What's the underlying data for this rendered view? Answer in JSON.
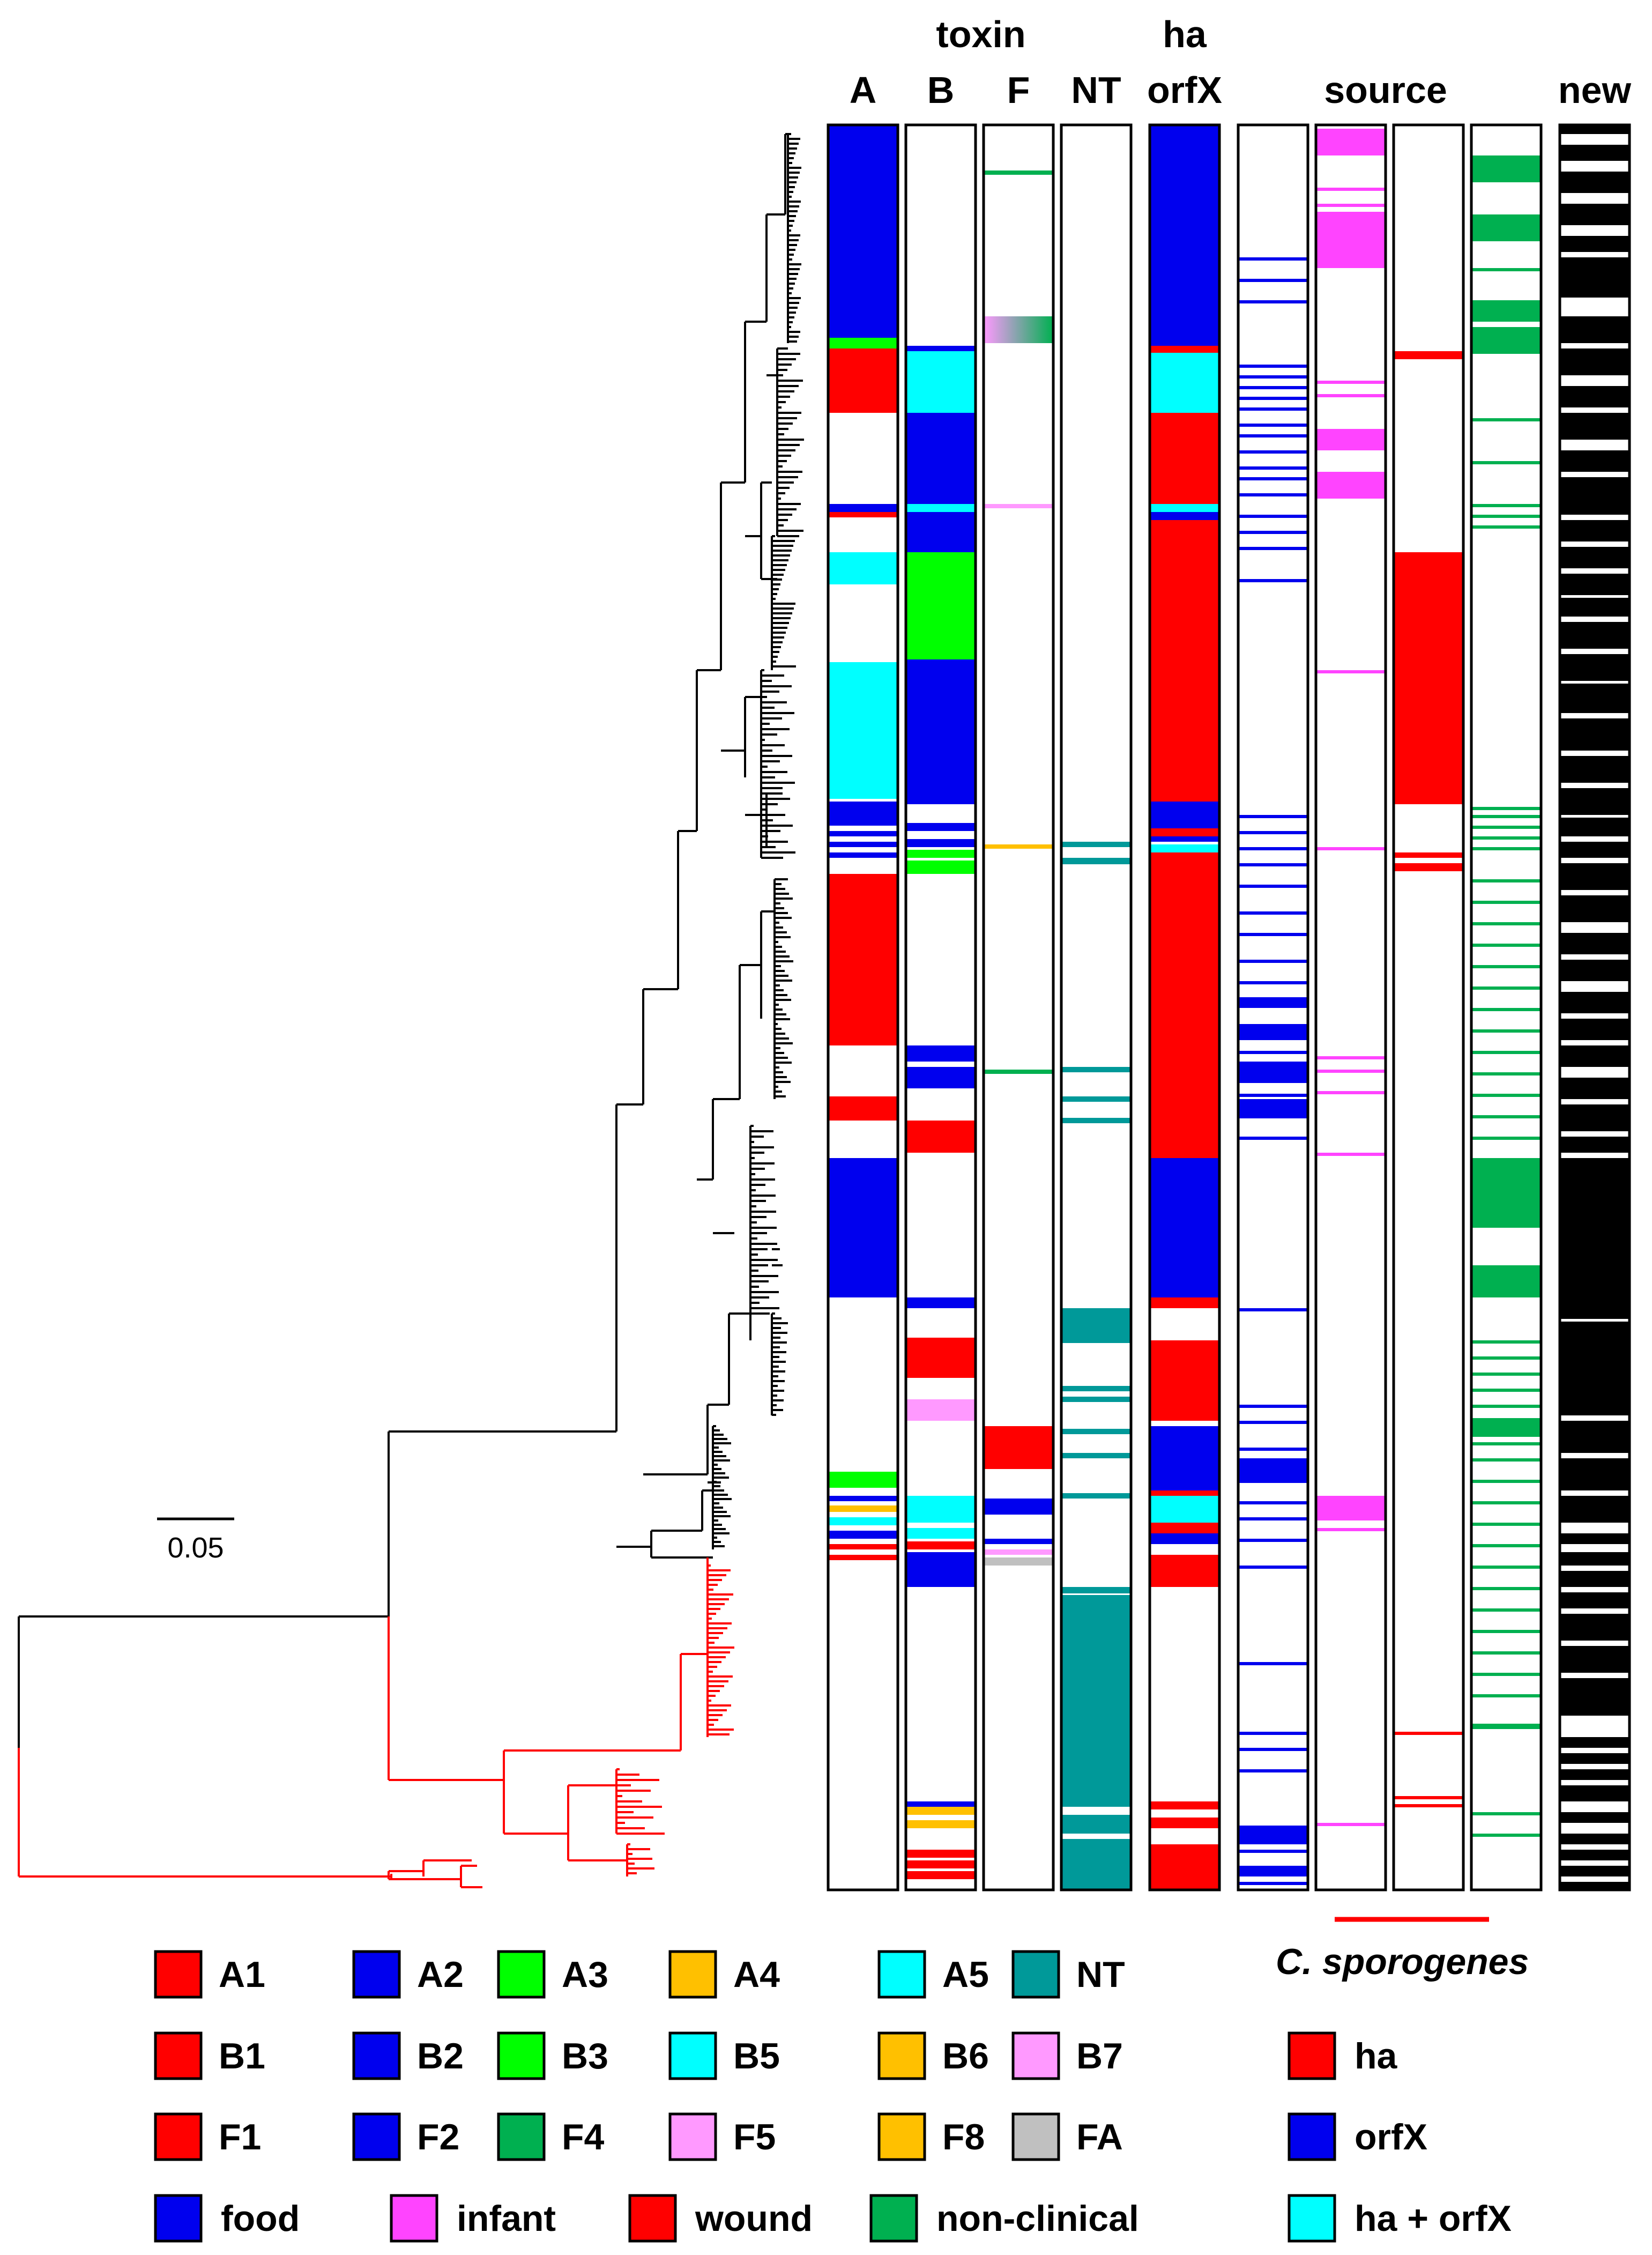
{
  "headers": {
    "toxin": "toxin",
    "A": "A",
    "B": "B",
    "F": "F",
    "NT": "NT",
    "ha": "ha",
    "orfX": "orfX",
    "source": "source",
    "new": "new"
  },
  "scale_bar": {
    "value": "0.05"
  },
  "colors": {
    "red": "#ff0000",
    "blue": "#0000ee",
    "green": "#00ff00",
    "orange": "#ffc000",
    "cyan": "#00ffff",
    "teal": "#009999",
    "pink": "#ff99ff",
    "darkgreen": "#00b050",
    "grey": "#c0c0c0",
    "magenta": "#ff44ff",
    "black": "#000000"
  },
  "legend": {
    "toxin_subtypes": [
      {
        "label": "A1",
        "color": "#ff0000"
      },
      {
        "label": "A2",
        "color": "#0000ee"
      },
      {
        "label": "A3",
        "color": "#00ff00"
      },
      {
        "label": "A4",
        "color": "#ffc000"
      },
      {
        "label": "A5",
        "color": "#00ffff"
      },
      {
        "label": "NT",
        "color": "#009999"
      },
      {
        "label": "B1",
        "color": "#ff0000"
      },
      {
        "label": "B2",
        "color": "#0000ee"
      },
      {
        "label": "B3",
        "color": "#00ff00"
      },
      {
        "label": "B5",
        "color": "#00ffff"
      },
      {
        "label": "B6",
        "color": "#ffc000"
      },
      {
        "label": "B7",
        "color": "#ff99ff"
      },
      {
        "label": "F1",
        "color": "#ff0000"
      },
      {
        "label": "F2",
        "color": "#0000ee"
      },
      {
        "label": "F4",
        "color": "#00b050"
      },
      {
        "label": "F5",
        "color": "#ff99ff"
      },
      {
        "label": "F8",
        "color": "#ffc000"
      },
      {
        "label": "FA",
        "color": "#c0c0c0"
      }
    ],
    "sources": [
      {
        "label": "food",
        "color": "#0000ee"
      },
      {
        "label": "infant",
        "color": "#ff44ff"
      },
      {
        "label": "wound",
        "color": "#ff0000"
      },
      {
        "label": "non-clinical",
        "color": "#00b050"
      }
    ],
    "c_sporogenes": {
      "title": "C. sporogenes",
      "items": [
        {
          "label": "ha",
          "color": "#ff0000"
        },
        {
          "label": "orfX",
          "color": "#0000ee"
        },
        {
          "label": "ha + orfX",
          "color": "#00ffff"
        }
      ]
    }
  }
}
